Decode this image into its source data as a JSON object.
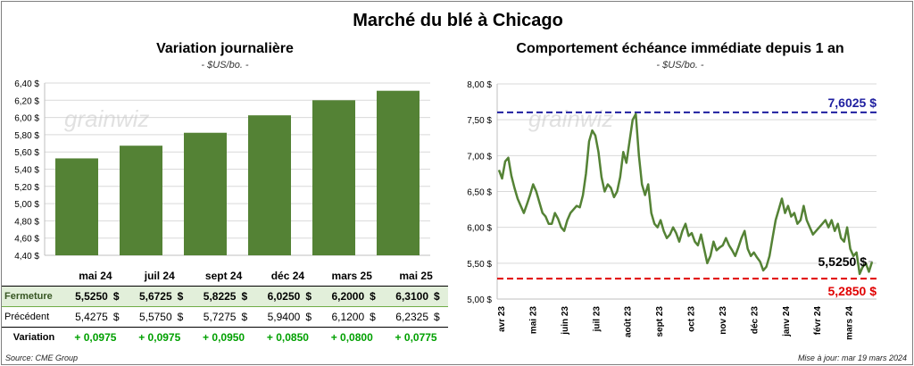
{
  "title": "Marché du blé à Chicago",
  "left": {
    "subtitle": "Variation journalière",
    "unit": "- $US/bo. -",
    "watermark": "grainwiz"
  },
  "right": {
    "subtitle": "Comportement échéance immédiate depuis 1 an",
    "unit": "- $US/bo. -",
    "watermark": "grainwiz",
    "high_label": "7,6025 $",
    "low_label": "5,2850 $",
    "last_label": "5,5250 $"
  },
  "table": {
    "headers": [
      "mai 24",
      "juil 24",
      "sept 24",
      "déc 24",
      "mars 25",
      "mai 25"
    ],
    "rows": [
      {
        "label": "Fermeture",
        "values": [
          "5,5250",
          "5,6725",
          "5,8225",
          "6,0250",
          "6,2000",
          "6,3100"
        ],
        "unit": "$"
      },
      {
        "label": "Précédent",
        "values": [
          "5,4275",
          "5,5750",
          "5,7275",
          "5,9400",
          "6,1200",
          "6,2325"
        ],
        "unit": "$"
      },
      {
        "label": "Variation",
        "values": [
          "+ 0,0975",
          "+ 0,0975",
          "+ 0,0950",
          "+ 0,0850",
          "+ 0,0800",
          "+ 0,0775"
        ],
        "unit": ""
      }
    ]
  },
  "footer": {
    "source": "Source: CME Group",
    "updated": "Mise à jour: mar 19 mars 2024"
  },
  "colors": {
    "bar": "#548235",
    "line": "#548235",
    "high": "#1f1fa0",
    "low": "#e00000",
    "grid": "#d9d9d9"
  },
  "chart_data": [
    {
      "type": "bar",
      "title": "Variation journalière",
      "subtitle": "- $US/bo. -",
      "categories": [
        "mai 24",
        "juil 24",
        "sept 24",
        "déc 24",
        "mars 25",
        "mai 25"
      ],
      "values": [
        5.525,
        5.6725,
        5.8225,
        6.025,
        6.2,
        6.31
      ],
      "ylim": [
        4.4,
        6.4
      ],
      "yticks": [
        4.4,
        4.6,
        4.8,
        5.0,
        5.2,
        5.4,
        5.6,
        5.8,
        6.0,
        6.2,
        6.4
      ],
      "ytick_labels": [
        "4,40 $",
        "4,60 $",
        "4,80 $",
        "5,00 $",
        "5,20 $",
        "5,40 $",
        "5,60 $",
        "5,80 $",
        "6,00 $",
        "6,20 $",
        "6,40 $"
      ],
      "grid": true
    },
    {
      "type": "line",
      "title": "Comportement échéance immédiate depuis 1 an",
      "subtitle": "- $US/bo. -",
      "x_labels": [
        "avr 23",
        "mai 23",
        "juin 23",
        "juil 23",
        "août 23",
        "sept 23",
        "oct 23",
        "nov 23",
        "déc 23",
        "janv 24",
        "févr 24",
        "mars 24"
      ],
      "ylim": [
        5.0,
        8.0
      ],
      "yticks": [
        5.0,
        5.5,
        6.0,
        6.5,
        7.0,
        7.5,
        8.0
      ],
      "ytick_labels": [
        "5,00 $",
        "5,50 $",
        "6,00 $",
        "6,50 $",
        "7,00 $",
        "7,50 $",
        "8,00 $"
      ],
      "grid": true,
      "high": 7.6025,
      "low": 5.285,
      "last": 5.525,
      "series": [
        {
          "values": [
            6.8,
            6.68,
            6.92,
            6.97,
            6.72,
            6.55,
            6.4,
            6.3,
            6.2,
            6.32,
            6.45,
            6.6,
            6.5,
            6.35,
            6.2,
            6.15,
            6.05,
            6.05,
            6.2,
            6.12,
            6.0,
            5.95,
            6.1,
            6.2,
            6.25,
            6.3,
            6.28,
            6.45,
            6.75,
            7.2,
            7.35,
            7.28,
            7.05,
            6.7,
            6.5,
            6.6,
            6.55,
            6.42,
            6.5,
            6.7,
            7.05,
            6.9,
            7.2,
            7.5,
            7.58,
            7.0,
            6.6,
            6.45,
            6.6,
            6.2,
            6.05,
            6.0,
            6.1,
            5.95,
            5.85,
            5.9,
            6.0,
            5.92,
            5.8,
            5.95,
            6.05,
            5.88,
            5.92,
            5.8,
            5.75,
            5.9,
            5.7,
            5.5,
            5.6,
            5.8,
            5.68,
            5.72,
            5.75,
            5.85,
            5.75,
            5.68,
            5.6,
            5.72,
            5.85,
            5.95,
            5.7,
            5.6,
            5.65,
            5.58,
            5.52,
            5.4,
            5.45,
            5.6,
            5.85,
            6.1,
            6.25,
            6.4,
            6.2,
            6.3,
            6.15,
            6.2,
            6.05,
            6.1,
            6.3,
            6.1,
            6.0,
            5.9,
            5.95,
            6.0,
            6.05,
            6.1,
            6.0,
            6.1,
            5.95,
            6.05,
            5.85,
            5.8,
            6.0,
            5.7,
            5.6,
            5.65,
            5.35,
            5.45,
            5.5,
            5.38,
            5.52
          ]
        }
      ]
    }
  ]
}
